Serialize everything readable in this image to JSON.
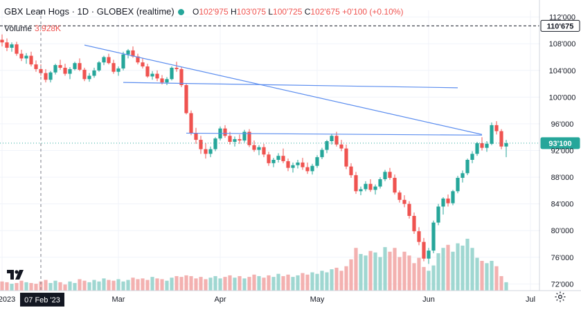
{
  "header": {
    "symbol": "GBX Lean Hogs",
    "interval": "1D",
    "exchange": "GLOBEX (realtime)",
    "open_label": "O",
    "open": "102'975",
    "high_label": "H",
    "high": "103'075",
    "low_label": "L",
    "low": "100'725",
    "close_label": "C",
    "close": "102'675",
    "change": "+0'100 (+0.10%)",
    "status_color": "#26a69a"
  },
  "volume": {
    "label": "Volume",
    "value": "3.928K"
  },
  "colors": {
    "up": "#26a69a",
    "down": "#ef5350",
    "up_vol": "#9fd7d1",
    "down_vol": "#f3b1b0",
    "trendline": "#5b8def",
    "grid": "#f0f3fa"
  },
  "chart_data": {
    "type": "candlestick",
    "title": "GBX Lean Hogs",
    "ylim": [
      71,
      113
    ],
    "y_ticks": [
      "72'000",
      "76'000",
      "80'000",
      "84'000",
      "88'000",
      "92'000",
      "96'000",
      "100'000",
      "104'000",
      "108'000",
      "112'000"
    ],
    "y_tick_values": [
      72,
      76,
      80,
      84,
      88,
      92,
      96,
      100,
      104,
      108,
      112
    ],
    "x_ticks": [
      {
        "label": "2023",
        "x": 0
      },
      {
        "label": "Mar",
        "x": 24
      },
      {
        "label": "Apr",
        "x": 45
      },
      {
        "label": "May",
        "x": 65
      },
      {
        "label": "Jun",
        "x": 88
      },
      {
        "label": "Jul",
        "x": 109
      }
    ],
    "crosshair": {
      "label": "07 Feb '23",
      "x": 8
    },
    "price_marks": [
      {
        "label": "110'675",
        "value": 110.675,
        "style": "dashed",
        "color": "#131722"
      },
      {
        "label": "93'100",
        "value": 93.1,
        "style": "dotted",
        "color": "#26a69a"
      }
    ],
    "trendlines": [
      {
        "x1": 25,
        "y1": 102.2,
        "x2": 94,
        "y2": 101.4
      },
      {
        "x1": 17,
        "y1": 107.8,
        "x2": 99,
        "y2": 94.4
      },
      {
        "x1": 38,
        "y1": 94.6,
        "x2": 99,
        "y2": 94.3
      }
    ],
    "ohlc": [
      [
        108.6,
        109.4,
        107.6,
        108.2
      ],
      [
        108.2,
        108.8,
        106.9,
        107.4
      ],
      [
        107.4,
        108.2,
        106.8,
        107.9
      ],
      [
        107.9,
        108.3,
        106.2,
        106.5
      ],
      [
        106.5,
        107.1,
        105.4,
        105.8
      ],
      [
        105.8,
        106.6,
        105.0,
        106.2
      ],
      [
        106.2,
        106.8,
        104.6,
        104.9
      ],
      [
        104.9,
        105.5,
        103.8,
        104.2
      ],
      [
        104.2,
        104.9,
        103.2,
        103.6
      ],
      [
        103.6,
        104.2,
        102.2,
        102.6
      ],
      [
        102.6,
        103.9,
        102.2,
        103.7
      ],
      [
        103.7,
        105.0,
        103.4,
        104.8
      ],
      [
        104.8,
        105.6,
        104.1,
        104.4
      ],
      [
        104.4,
        105.0,
        103.2,
        103.5
      ],
      [
        103.5,
        104.5,
        102.7,
        104.2
      ],
      [
        104.2,
        105.3,
        104.0,
        105.1
      ],
      [
        105.1,
        105.8,
        103.9,
        104.1
      ],
      [
        104.1,
        104.4,
        102.4,
        102.7
      ],
      [
        102.7,
        103.6,
        102.3,
        103.2
      ],
      [
        103.2,
        104.4,
        102.9,
        104.0
      ],
      [
        104.0,
        105.4,
        103.8,
        105.2
      ],
      [
        105.2,
        106.2,
        104.8,
        106.0
      ],
      [
        106.0,
        106.5,
        104.9,
        105.1
      ],
      [
        105.1,
        105.6,
        103.5,
        103.8
      ],
      [
        103.8,
        104.6,
        103.2,
        104.3
      ],
      [
        104.3,
        106.8,
        104.0,
        106.4
      ],
      [
        106.4,
        107.2,
        105.8,
        107.0
      ],
      [
        107.0,
        107.6,
        105.9,
        106.1
      ],
      [
        106.1,
        106.5,
        104.9,
        105.2
      ],
      [
        105.2,
        105.8,
        104.3,
        104.6
      ],
      [
        104.6,
        105.0,
        102.9,
        103.1
      ],
      [
        103.1,
        103.9,
        102.6,
        103.5
      ],
      [
        103.5,
        104.0,
        102.4,
        102.8
      ],
      [
        102.8,
        103.3,
        101.9,
        102.2
      ],
      [
        102.2,
        103.0,
        101.8,
        102.7
      ],
      [
        102.7,
        104.6,
        102.5,
        104.4
      ],
      [
        104.4,
        105.3,
        103.8,
        104.2
      ],
      [
        104.2,
        104.5,
        101.5,
        101.8
      ],
      [
        101.8,
        102.1,
        97.4,
        97.6
      ],
      [
        97.6,
        98.0,
        94.3,
        94.6
      ],
      [
        94.6,
        95.4,
        93.0,
        93.6
      ],
      [
        93.6,
        94.2,
        91.5,
        92.2
      ],
      [
        92.2,
        93.1,
        90.8,
        91.5
      ],
      [
        91.5,
        92.6,
        91.0,
        92.2
      ],
      [
        92.2,
        94.0,
        91.9,
        93.8
      ],
      [
        93.8,
        95.6,
        93.5,
        95.3
      ],
      [
        95.3,
        95.8,
        93.9,
        94.2
      ],
      [
        94.2,
        94.8,
        92.9,
        93.3
      ],
      [
        93.3,
        94.1,
        92.6,
        93.7
      ],
      [
        93.7,
        94.4,
        93.0,
        93.5
      ],
      [
        93.5,
        95.1,
        93.2,
        94.8
      ],
      [
        94.8,
        95.2,
        92.5,
        92.8
      ],
      [
        92.8,
        93.5,
        91.8,
        92.1
      ],
      [
        92.1,
        92.8,
        91.3,
        92.5
      ],
      [
        92.5,
        93.0,
        91.0,
        91.4
      ],
      [
        91.4,
        91.8,
        89.7,
        90.1
      ],
      [
        90.1,
        90.9,
        89.5,
        90.6
      ],
      [
        90.6,
        91.6,
        90.2,
        91.2
      ],
      [
        91.2,
        92.3,
        90.1,
        90.4
      ],
      [
        90.4,
        90.8,
        88.9,
        89.4
      ],
      [
        89.4,
        90.2,
        88.7,
        89.8
      ],
      [
        89.8,
        90.6,
        89.3,
        90.2
      ],
      [
        90.2,
        90.9,
        89.1,
        89.5
      ],
      [
        89.5,
        90.2,
        88.5,
        88.9
      ],
      [
        88.9,
        90.0,
        88.4,
        89.7
      ],
      [
        89.7,
        91.3,
        89.4,
        91.0
      ],
      [
        91.0,
        92.4,
        90.7,
        92.1
      ],
      [
        92.1,
        93.6,
        91.6,
        93.4
      ],
      [
        93.4,
        94.5,
        92.9,
        94.2
      ],
      [
        94.2,
        94.8,
        92.6,
        92.9
      ],
      [
        92.9,
        93.6,
        91.9,
        92.3
      ],
      [
        92.3,
        92.9,
        89.2,
        89.6
      ],
      [
        89.6,
        90.1,
        87.9,
        88.3
      ],
      [
        88.3,
        88.8,
        85.5,
        85.9
      ],
      [
        85.9,
        86.6,
        85.3,
        86.2
      ],
      [
        86.2,
        87.4,
        85.9,
        87.0
      ],
      [
        87.0,
        87.7,
        85.8,
        86.1
      ],
      [
        86.1,
        86.9,
        85.4,
        86.6
      ],
      [
        86.6,
        88.0,
        86.3,
        87.7
      ],
      [
        87.7,
        89.1,
        87.4,
        88.8
      ],
      [
        88.8,
        89.4,
        87.6,
        87.9
      ],
      [
        87.9,
        88.4,
        85.4,
        85.7
      ],
      [
        85.7,
        86.0,
        84.2,
        84.6
      ],
      [
        84.6,
        85.3,
        83.5,
        84.0
      ],
      [
        84.0,
        84.4,
        81.8,
        82.2
      ],
      [
        82.2,
        82.7,
        79.5,
        79.9
      ],
      [
        79.9,
        80.5,
        77.8,
        78.3
      ],
      [
        78.3,
        78.9,
        75.4,
        75.8
      ],
      [
        75.8,
        77.4,
        75.0,
        77.0
      ],
      [
        77.0,
        81.5,
        76.6,
        81.2
      ],
      [
        81.2,
        84.0,
        80.8,
        83.6
      ],
      [
        83.6,
        85.0,
        82.4,
        84.8
      ],
      [
        84.8,
        85.4,
        83.6,
        84.1
      ],
      [
        84.1,
        86.1,
        83.8,
        85.9
      ],
      [
        85.9,
        88.2,
        85.6,
        87.9
      ],
      [
        87.9,
        89.0,
        87.2,
        88.6
      ],
      [
        88.6,
        90.8,
        88.3,
        90.6
      ],
      [
        90.6,
        91.9,
        90.1,
        91.5
      ],
      [
        91.5,
        93.3,
        91.2,
        93.1
      ],
      [
        93.1,
        94.0,
        92.0,
        92.4
      ],
      [
        92.4,
        93.4,
        91.8,
        93.0
      ],
      [
        93.0,
        96.2,
        92.8,
        95.8
      ],
      [
        95.8,
        96.4,
        94.4,
        94.9
      ],
      [
        94.9,
        95.2,
        92.2,
        92.6
      ],
      [
        92.6,
        93.6,
        91.0,
        93.1
      ]
    ],
    "volume_k": [
      1.2,
      1.1,
      0.9,
      1.0,
      1.3,
      1.1,
      1.0,
      0.9,
      1.2,
      1.4,
      1.0,
      1.3,
      1.1,
      0.8,
      1.2,
      1.0,
      1.5,
      1.3,
      1.1,
      1.4,
      1.2,
      1.6,
      1.4,
      1.3,
      1.5,
      1.2,
      1.4,
      1.7,
      1.5,
      1.6,
      1.4,
      1.8,
      1.6,
      1.5,
      1.3,
      1.7,
      1.9,
      1.8,
      2.0,
      1.9,
      1.6,
      1.8,
      1.5,
      1.7,
      1.9,
      1.6,
      1.8,
      2.0,
      1.7,
      1.9,
      1.6,
      1.8,
      2.1,
      1.9,
      1.7,
      2.0,
      1.8,
      2.2,
      1.9,
      2.1,
      1.8,
      2.0,
      2.3,
      2.1,
      2.4,
      2.2,
      2.6,
      2.4,
      2.8,
      3.0,
      2.6,
      3.2,
      4.1,
      5.6,
      4.8,
      4.6,
      5.2,
      5.0,
      4.4,
      5.7,
      5.1,
      5.6,
      4.4,
      5.1,
      4.6,
      3.6,
      4.3,
      3.1,
      2.6,
      3.3,
      4.9,
      5.6,
      6.0,
      5.1,
      6.2,
      5.9,
      6.8,
      5.6,
      4.3,
      3.9,
      3.6,
      3.9,
      3.2,
      1.9,
      1.1
    ]
  }
}
